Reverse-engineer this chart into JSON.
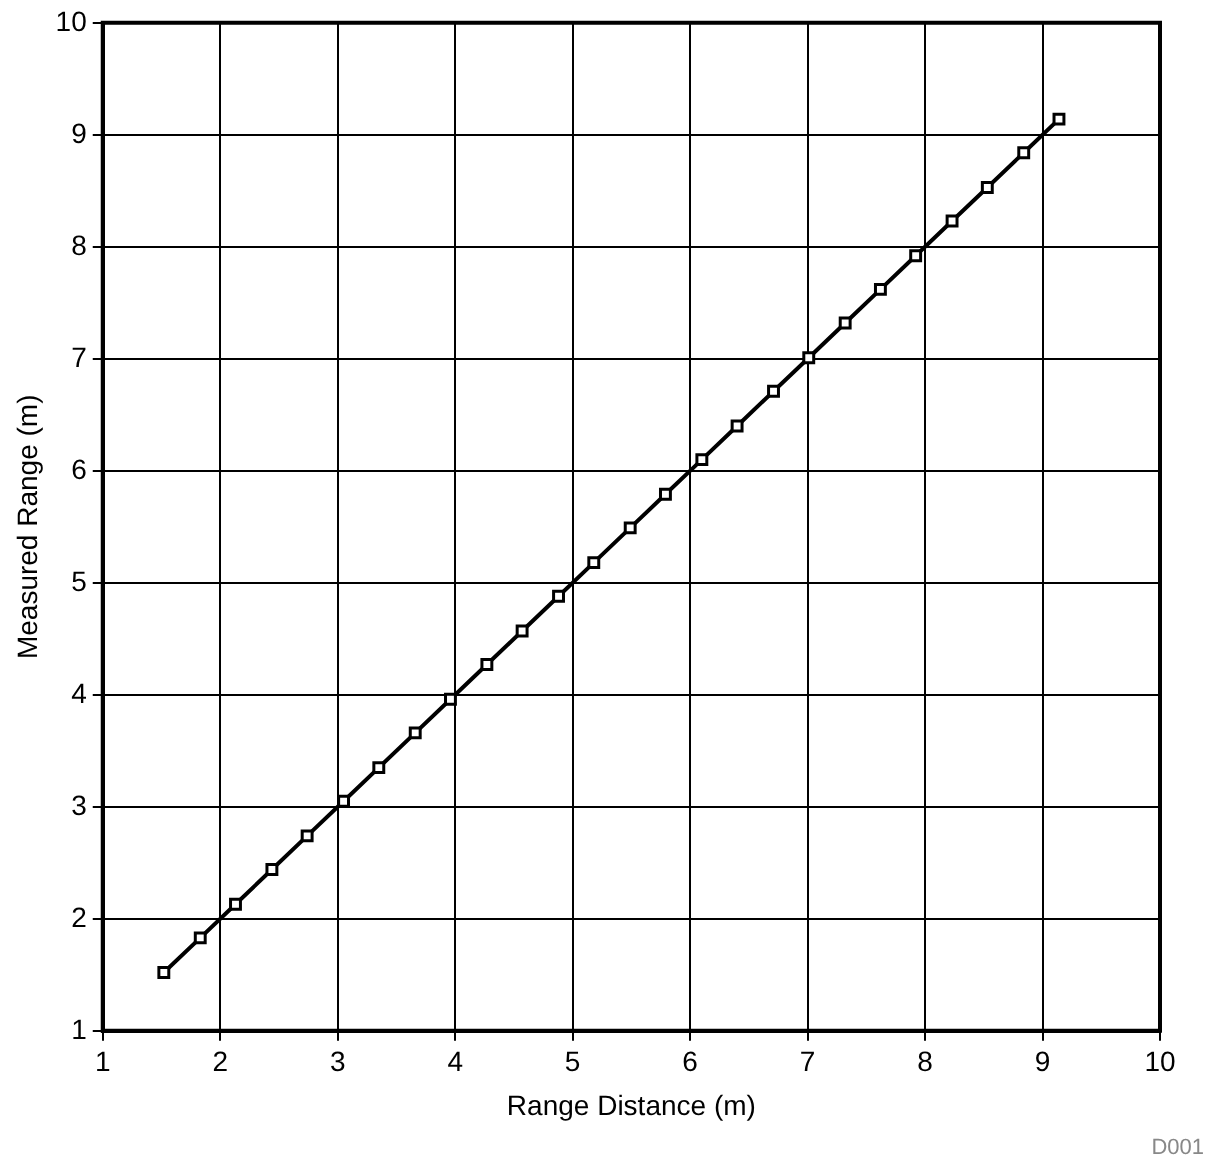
{
  "chart_data": {
    "type": "line",
    "xlabel": "Range Distance (m)",
    "ylabel": "Measured Range (m)",
    "x": [
      1.52,
      1.83,
      2.13,
      2.44,
      2.74,
      3.05,
      3.35,
      3.66,
      3.96,
      4.27,
      4.57,
      4.88,
      5.18,
      5.49,
      5.79,
      6.1,
      6.4,
      6.71,
      7.01,
      7.32,
      7.62,
      7.92,
      8.23,
      8.53,
      8.84,
      9.14
    ],
    "series": [
      {
        "color": "#000000",
        "values": [
          1.52,
          1.83,
          2.13,
          2.44,
          2.74,
          3.05,
          3.35,
          3.66,
          3.96,
          4.27,
          4.57,
          4.88,
          5.18,
          5.49,
          5.79,
          6.1,
          6.4,
          6.71,
          7.01,
          7.32,
          7.62,
          7.92,
          8.23,
          8.53,
          8.84,
          9.14
        ]
      }
    ],
    "xlim": [
      1,
      10
    ],
    "xticks": [
      1,
      2,
      3,
      4,
      5,
      6,
      7,
      8,
      9,
      10
    ],
    "ylim": [
      1,
      10
    ],
    "yticks": [
      1,
      2,
      3,
      4,
      5,
      6,
      7,
      8,
      9,
      10
    ],
    "grid": true,
    "legend": false,
    "marker": "square",
    "line_style": "solid",
    "annotations": [
      "D001"
    ]
  }
}
